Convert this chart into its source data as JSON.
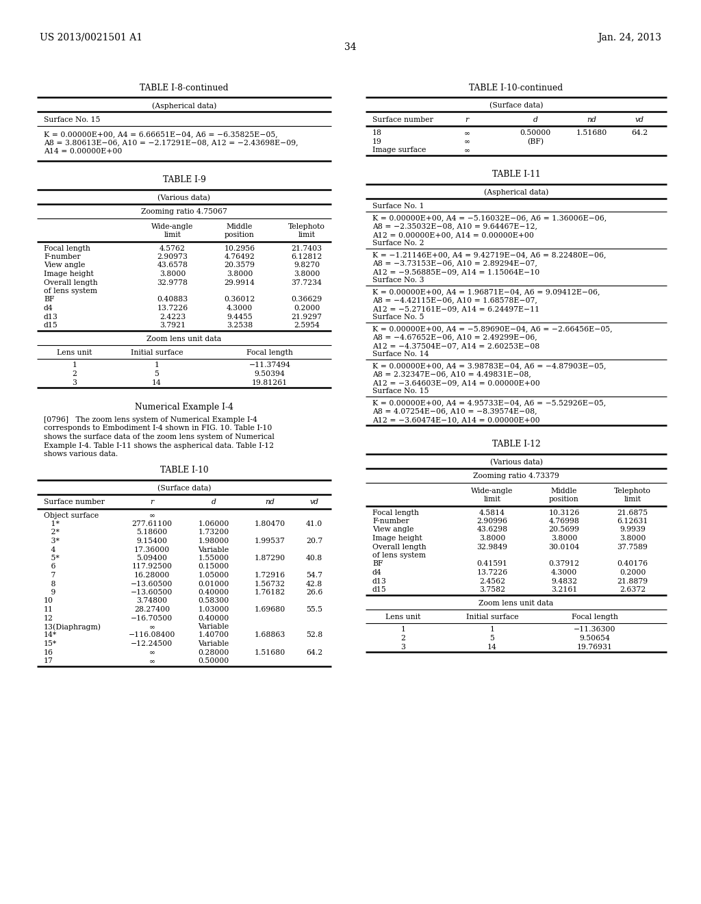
{
  "header_left": "US 2013/0021501 A1",
  "header_right": "Jan. 24, 2013",
  "page_number": "34",
  "table_i8_cont": {
    "title": "TABLE I-8-continued",
    "subtitle": "(Aspherical data)",
    "surface_no": "Surface No. 15",
    "line1": "K = 0.00000E+00, A4 = 6.66651E−04, A6 = −6.35825E−05,",
    "line2": "A8 = 3.80613E−06, A10 = −2.17291E−08, A12 = −2.43698E−09,",
    "line3": "A14 = 0.00000E+00"
  },
  "table_i9": {
    "title": "TABLE I-9",
    "subtitle": "(Various data)",
    "zooming_ratio": "Zooming ratio 4.75067",
    "rows": [
      [
        "Focal length",
        "4.5762",
        "10.2956",
        "21.7403"
      ],
      [
        "F-number",
        "2.90973",
        "4.76492",
        "6.12812"
      ],
      [
        "View angle",
        "43.6578",
        "20.3579",
        "9.8270"
      ],
      [
        "Image height",
        "3.8000",
        "3.8000",
        "3.8000"
      ],
      [
        "Overall length",
        "32.9778",
        "29.9914",
        "37.7234"
      ],
      [
        "of lens system",
        "",
        "",
        ""
      ],
      [
        "BF",
        "0.40883",
        "0.36012",
        "0.36629"
      ],
      [
        "d4",
        "13.7226",
        "4.3000",
        "0.2000"
      ],
      [
        "d13",
        "2.4223",
        "9.4455",
        "21.9297"
      ],
      [
        "d15",
        "3.7921",
        "3.2538",
        "2.5954"
      ]
    ],
    "zoom_lens_title": "Zoom lens unit data",
    "zoom_headers": [
      "Lens unit",
      "Initial surface",
      "Focal length"
    ],
    "zoom_rows": [
      [
        "1",
        "1",
        "−11.37494"
      ],
      [
        "2",
        "5",
        "9.50394"
      ],
      [
        "3",
        "14",
        "19.81261"
      ]
    ]
  },
  "numerical_example_title": "Numerical Example I-4",
  "numerical_example_lines": [
    "[0796]   The zoom lens system of Numerical Example I-4",
    "corresponds to Embodiment I-4 shown in FIG. 10. Table I-10",
    "shows the surface data of the zoom lens system of Numerical",
    "Example I-4. Table I-11 shows the aspherical data. Table I-12",
    "shows various data."
  ],
  "table_i10": {
    "title": "TABLE I-10",
    "subtitle": "(Surface data)",
    "rows": [
      [
        "Object surface",
        "∞",
        "",
        "",
        ""
      ],
      [
        "   1*",
        "277.61100",
        "1.06000",
        "1.80470",
        "41.0"
      ],
      [
        "   2*",
        "5.18600",
        "1.73200",
        "",
        ""
      ],
      [
        "   3*",
        "9.15400",
        "1.98000",
        "1.99537",
        "20.7"
      ],
      [
        "   4",
        "17.36000",
        "Variable",
        "",
        ""
      ],
      [
        "   5*",
        "5.09400",
        "1.55000",
        "1.87290",
        "40.8"
      ],
      [
        "   6",
        "117.92500",
        "0.15000",
        "",
        ""
      ],
      [
        "   7",
        "16.28000",
        "1.05000",
        "1.72916",
        "54.7"
      ],
      [
        "   8",
        "−13.60500",
        "0.01000",
        "1.56732",
        "42.8"
      ],
      [
        "   9",
        "−13.60500",
        "0.40000",
        "1.76182",
        "26.6"
      ],
      [
        "10",
        "3.74800",
        "0.58300",
        "",
        ""
      ],
      [
        "11",
        "28.27400",
        "1.03000",
        "1.69680",
        "55.5"
      ],
      [
        "12",
        "−16.70500",
        "0.40000",
        "",
        ""
      ],
      [
        "13(Diaphragm)",
        "∞",
        "Variable",
        "",
        ""
      ],
      [
        "14*",
        "−116.08400",
        "1.40700",
        "1.68863",
        "52.8"
      ],
      [
        "15*",
        "−12.24500",
        "Variable",
        "",
        ""
      ],
      [
        "16",
        "∞",
        "0.28000",
        "1.51680",
        "64.2"
      ],
      [
        "17",
        "∞",
        "0.50000",
        "",
        ""
      ]
    ]
  },
  "table_i10_cont": {
    "title": "TABLE I-10-continued",
    "subtitle": "(Surface data)",
    "rows": [
      [
        "18",
        "∞",
        "0.50000",
        "1.51680",
        "64.2"
      ],
      [
        "19",
        "∞",
        "(BF)",
        "",
        ""
      ],
      [
        "Image surface",
        "∞",
        "",
        "",
        ""
      ]
    ]
  },
  "table_i11": {
    "title": "TABLE I-11",
    "subtitle": "(Aspherical data)",
    "blocks": [
      {
        "surface": "Surface No. 1",
        "lines": [
          "K = 0.00000E+00, A4 = −5.16032E−06, A6 = 1.36006E−06,",
          "A8 = −2.35032E−08, A10 = 9.64467E−12,",
          "A12 = 0.00000E+00, A14 = 0.00000E+00"
        ]
      },
      {
        "surface": "Surface No. 2",
        "lines": [
          "K = −1.21146E+00, A4 = 9.42719E−04, A6 = 8.22480E−06,",
          "A8 = −3.73153E−06, A10 = 2.89294E−07,",
          "A12 = −9.56885E−09, A14 = 1.15064E−10"
        ]
      },
      {
        "surface": "Surface No. 3",
        "lines": [
          "K = 0.00000E+00, A4 = 1.96871E−04, A6 = 9.09412E−06,",
          "A8 = −4.42115E−06, A10 = 1.68578E−07,",
          "A12 = −5.27161E−09, A14 = 6.24497E−11"
        ]
      },
      {
        "surface": "Surface No. 5",
        "lines": [
          "K = 0.00000E+00, A4 = −5.89690E−04, A6 = −2.66456E−05,",
          "A8 = −4.67652E−06, A10 = 2.49299E−06,",
          "A12 = −4.37504E−07, A14 = 2.60253E−08"
        ]
      },
      {
        "surface": "Surface No. 14",
        "lines": [
          "K = 0.00000E+00, A4 = 3.98783E−04, A6 = −4.87903E−05,",
          "A8 = 2.32347E−06, A10 = 4.49831E−08,",
          "A12 = −3.64603E−09, A14 = 0.00000E+00"
        ]
      },
      {
        "surface": "Surface No. 15",
        "lines": [
          "K = 0.00000E+00, A4 = 4.95733E−04, A6 = −5.52926E−05,",
          "A8 = 4.07254E−06, A10 = −8.39574E−08,",
          "A12 = −3.60474E−10, A14 = 0.00000E+00"
        ]
      }
    ]
  },
  "table_i12": {
    "title": "TABLE I-12",
    "subtitle": "(Various data)",
    "zooming_ratio": "Zooming ratio 4.73379",
    "rows": [
      [
        "Focal length",
        "4.5814",
        "10.3126",
        "21.6875"
      ],
      [
        "F-number",
        "2.90996",
        "4.76998",
        "6.12631"
      ],
      [
        "View angle",
        "43.6298",
        "20.5699",
        "9.9939"
      ],
      [
        "Image height",
        "3.8000",
        "3.8000",
        "3.8000"
      ],
      [
        "Overall length",
        "32.9849",
        "30.0104",
        "37.7589"
      ],
      [
        "of lens system",
        "",
        "",
        ""
      ],
      [
        "BF",
        "0.41591",
        "0.37912",
        "0.40176"
      ],
      [
        "d4",
        "13.7226",
        "4.3000",
        "0.2000"
      ],
      [
        "d13",
        "2.4562",
        "9.4832",
        "21.8879"
      ],
      [
        "d15",
        "3.7582",
        "3.2161",
        "2.6372"
      ]
    ],
    "zoom_lens_title": "Zoom lens unit data",
    "zoom_headers": [
      "Lens unit",
      "Initial surface",
      "Focal length"
    ],
    "zoom_rows": [
      [
        "1",
        "1",
        "−11.36300"
      ],
      [
        "2",
        "5",
        "9.50654"
      ],
      [
        "3",
        "14",
        "19.76931"
      ]
    ]
  }
}
